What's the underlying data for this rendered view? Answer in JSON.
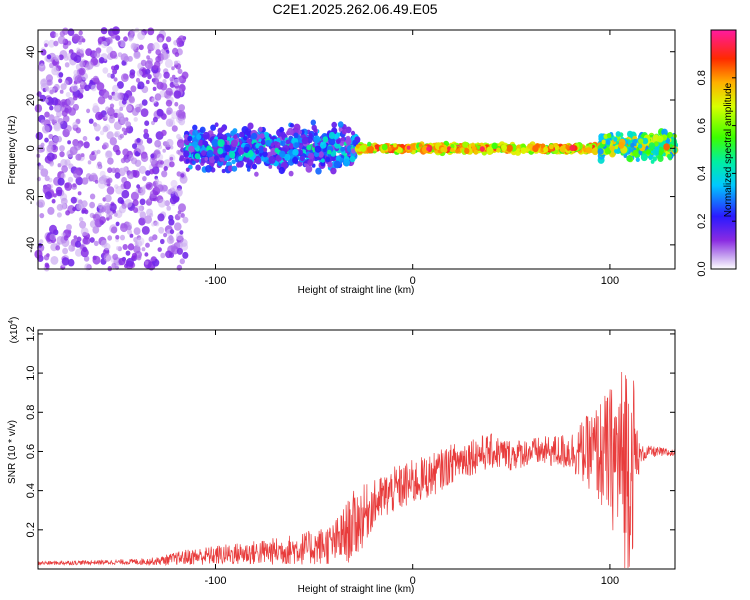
{
  "title": "C2E1.2025.262.06.49.E05",
  "chart_data": [
    {
      "type": "heatmap",
      "name": "spectrogram",
      "xlabel": "Height of straight line (km)",
      "ylabel": "Frequency (Hz)",
      "xlim": [
        -190,
        133
      ],
      "ylim": [
        -50,
        49
      ],
      "xticks": [
        -100,
        0,
        100
      ],
      "xtick_labels": [
        "-100",
        "0",
        "100"
      ],
      "yticks": [
        -40,
        -20,
        0,
        20,
        40
      ],
      "ytick_labels": [
        "-40",
        "-20",
        "0",
        "20",
        "40"
      ],
      "description_regions": [
        {
          "x": [
            -190,
            -115
          ],
          "character": "broadband scattered noise, amplitude ~0.05-0.15"
        },
        {
          "x": [
            -115,
            -28
          ],
          "freq_band": [
            -12,
            12
          ],
          "amplitude": [
            0.1,
            0.5
          ]
        },
        {
          "x": [
            -28,
            95
          ],
          "freq_band": [
            -2,
            2
          ],
          "amplitude": [
            0.5,
            1.0
          ]
        },
        {
          "x": [
            95,
            133
          ],
          "freq_band": [
            -6,
            8
          ],
          "amplitude": [
            0.3,
            0.9
          ]
        }
      ]
    },
    {
      "type": "colorbar",
      "name": "amplitude-colorbar",
      "label": "Normalized spectral amplitude",
      "range": [
        0,
        1
      ],
      "ticks": [
        0,
        0.2,
        0.4,
        0.6,
        0.8
      ],
      "tick_labels": [
        "0.0",
        "0.2",
        "0.4",
        "0.6",
        "0.8"
      ]
    },
    {
      "type": "line",
      "name": "snr",
      "xlabel": "Height of straight line (km)",
      "ylabel": "SNR (10 * v/v)",
      "multiplier_label": "(x10",
      "multiplier_exp": "4",
      "color": "#e83c3c",
      "xlim": [
        -190,
        133
      ],
      "ylim": [
        0,
        1.22
      ],
      "xticks": [
        -100,
        0,
        100
      ],
      "xtick_labels": [
        "-100",
        "0",
        "100"
      ],
      "yticks": [
        0.2,
        0.4,
        0.6,
        0.8,
        1.0,
        1.2
      ],
      "ytick_labels": [
        "0.2",
        "0.4",
        "0.6",
        "0.8",
        "1.0",
        "1.2"
      ],
      "envelope": {
        "x": [
          -190,
          -150,
          -130,
          -115,
          -100,
          -85,
          -70,
          -60,
          -50,
          -40,
          -35,
          -30,
          -25,
          -20,
          -10,
          0,
          10,
          20,
          30,
          40,
          50,
          60,
          70,
          80,
          90,
          100,
          105,
          108,
          110,
          112,
          115,
          120,
          133
        ],
        "mean": [
          0.03,
          0.035,
          0.04,
          0.06,
          0.07,
          0.08,
          0.09,
          0.1,
          0.11,
          0.13,
          0.17,
          0.22,
          0.27,
          0.33,
          0.4,
          0.44,
          0.48,
          0.54,
          0.58,
          0.6,
          0.58,
          0.6,
          0.6,
          0.6,
          0.6,
          0.58,
          0.55,
          0.55,
          0.55,
          0.56,
          0.58,
          0.6,
          0.59
        ],
        "amp": [
          0.01,
          0.012,
          0.02,
          0.04,
          0.05,
          0.06,
          0.07,
          0.08,
          0.09,
          0.11,
          0.15,
          0.18,
          0.16,
          0.12,
          0.12,
          0.12,
          0.11,
          0.1,
          0.1,
          0.09,
          0.08,
          0.07,
          0.08,
          0.1,
          0.2,
          0.35,
          0.45,
          0.6,
          0.55,
          0.45,
          0.05,
          0.03,
          0.02
        ]
      }
    }
  ]
}
